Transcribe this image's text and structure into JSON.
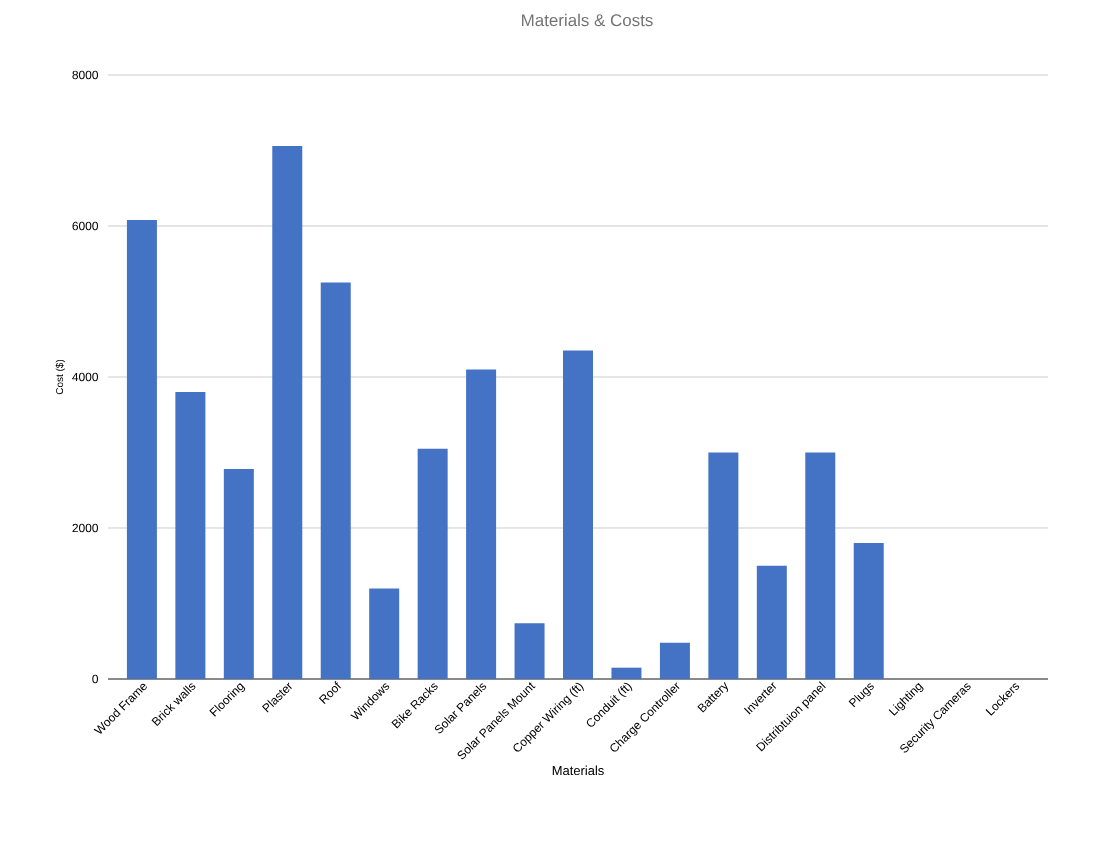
{
  "chart_data": {
    "type": "bar",
    "title": "Materials & Costs",
    "xlabel": "Materials",
    "ylabel": "Cost ($)",
    "categories": [
      "Wood Frame",
      "Brick walls",
      "Flooring",
      "Plaster",
      "Roof",
      "Windows",
      "Bike Racks",
      "Solar Panels",
      "Solar Panels Mount",
      "Copper Wiring (ft)",
      "Conduit (ft)",
      "Charge Controller",
      "Battery",
      "Inverter",
      "Distribtuion panel",
      "Plugs",
      "Lighting",
      "Security Cameras",
      "Lockers"
    ],
    "values": [
      6080,
      3800,
      2780,
      7060,
      5250,
      1200,
      3050,
      4100,
      740,
      4350,
      150,
      480,
      3000,
      1500,
      3000,
      1800,
      0,
      0,
      0
    ],
    "color": "#4472c4",
    "ylim": [
      0,
      8000
    ],
    "yticks": [
      0,
      2000,
      4000,
      6000,
      8000
    ],
    "grid": "y"
  }
}
